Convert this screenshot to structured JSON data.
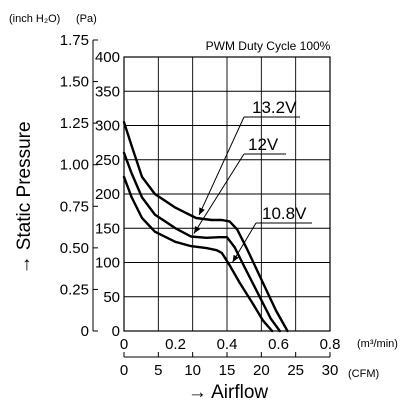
{
  "chart_data": {
    "type": "line",
    "title": "PWM Duty Cycle 100%",
    "xlabel": "→ Airflow",
    "ylabel": "→ Static Pressure",
    "x_units": {
      "primary": "(m³/min)",
      "secondary": "(CFM)"
    },
    "y_units": {
      "outer": "(inch H₂O)",
      "inner": "(Pa)"
    },
    "xlim": [
      0,
      0.8
    ],
    "ylim": [
      0,
      400
    ],
    "x_ticks_m3min": [
      "0",
      "0.2",
      "0.4",
      "0.6",
      "0.8"
    ],
    "x_ticks_cfm": [
      "0",
      "5",
      "10",
      "15",
      "20",
      "25",
      "30"
    ],
    "y_ticks_pa": [
      "0",
      "50",
      "100",
      "150",
      "200",
      "250",
      "300",
      "350",
      "400"
    ],
    "y_ticks_inch": [
      "0",
      "0.25",
      "0.50",
      "0.75",
      "1.00",
      "1.25",
      "1.50",
      "1.75"
    ],
    "grid": true,
    "series": [
      {
        "name": "13.2V",
        "x": [
          0,
          0.03,
          0.07,
          0.12,
          0.2,
          0.28,
          0.34,
          0.38,
          0.41,
          0.44,
          0.48,
          0.53,
          0.59,
          0.635
        ],
        "y": [
          305,
          270,
          225,
          200,
          180,
          165,
          162,
          162,
          160,
          148,
          118,
          78,
          30,
          0
        ]
      },
      {
        "name": "12V",
        "x": [
          0,
          0.03,
          0.07,
          0.12,
          0.2,
          0.26,
          0.32,
          0.37,
          0.4,
          0.43,
          0.47,
          0.52,
          0.57,
          0.605
        ],
        "y": [
          260,
          230,
          195,
          170,
          150,
          138,
          136,
          137,
          137,
          122,
          92,
          55,
          18,
          0
        ]
      },
      {
        "name": "10.8V",
        "x": [
          0,
          0.03,
          0.07,
          0.12,
          0.2,
          0.26,
          0.32,
          0.36,
          0.38,
          0.41,
          0.45,
          0.5,
          0.54,
          0.575
        ],
        "y": [
          225,
          195,
          165,
          145,
          130,
          124,
          121,
          118,
          114,
          96,
          70,
          40,
          15,
          0
        ]
      }
    ]
  }
}
